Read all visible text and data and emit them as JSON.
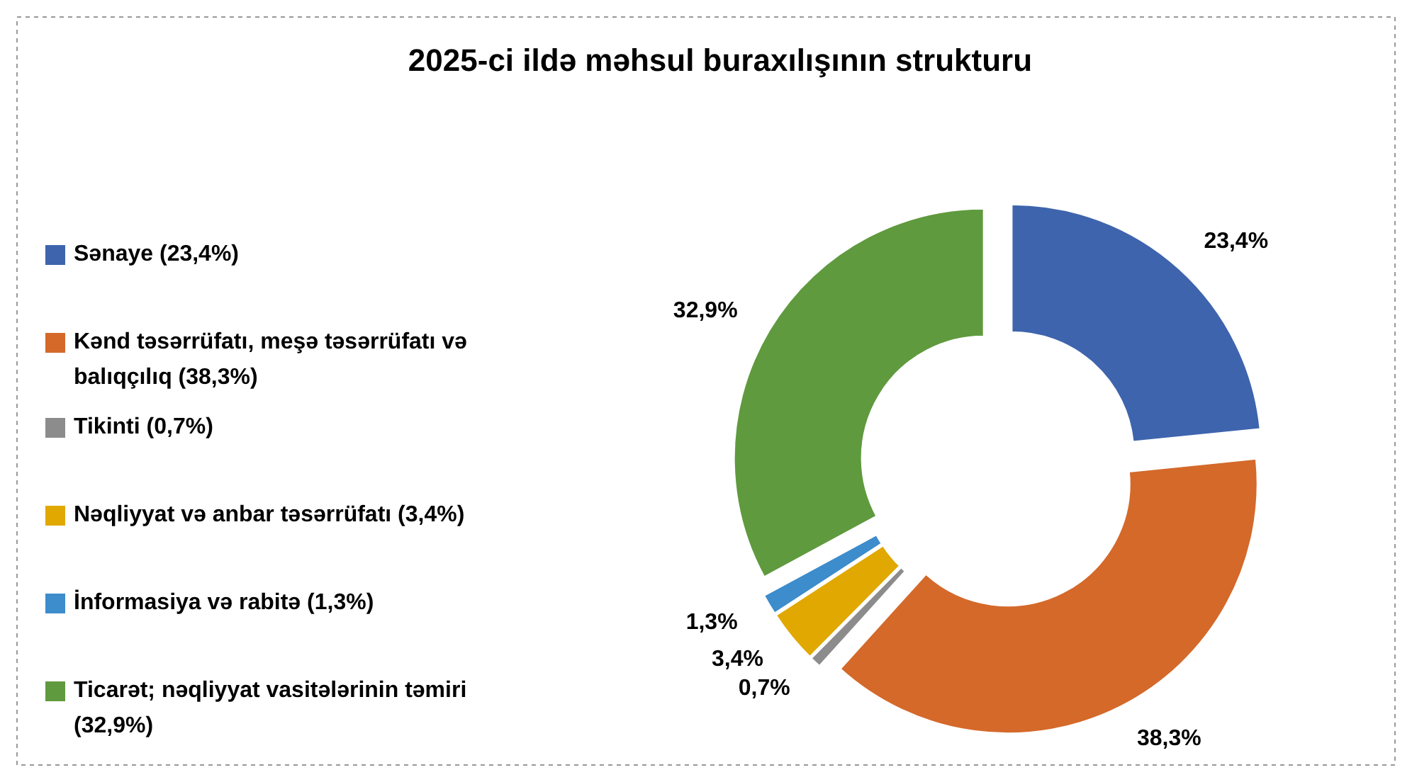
{
  "chart_data": {
    "type": "donut",
    "title": "2025-ci ildə məhsul buraxılışının strukturu",
    "categories": [
      "Sənaye (23,4%)",
      "Kənd təsərrüfatı, meşə təsərrüfatı və balıqçılıq (38,3%)",
      "Tikinti (0,7%)",
      "Nəqliyyat və anbar təsərrüfatı (3,4%)",
      "İnformasiya və rabitə (1,3%)",
      "Ticarət; nəqliyyat vasitələrinin təmiri (32,9%)"
    ],
    "values": [
      23.4,
      38.3,
      0.7,
      3.4,
      1.3,
      32.9
    ],
    "value_labels": [
      "23,4%",
      "38,3%",
      "0,7%",
      "3,4%",
      "1,3%",
      "32,9%"
    ],
    "colors": [
      "#3e64ad",
      "#d4692a",
      "#8c8c8c",
      "#e0a800",
      "#3d8ccc",
      "#5f9a3e"
    ],
    "legend": "left"
  }
}
